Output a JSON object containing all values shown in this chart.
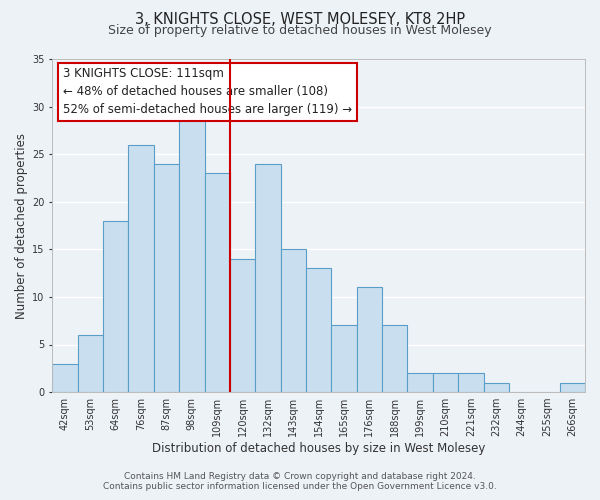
{
  "title": "3, KNIGHTS CLOSE, WEST MOLESEY, KT8 2HP",
  "subtitle": "Size of property relative to detached houses in West Molesey",
  "xlabel": "Distribution of detached houses by size in West Molesey",
  "ylabel": "Number of detached properties",
  "bar_labels": [
    "42sqm",
    "53sqm",
    "64sqm",
    "76sqm",
    "87sqm",
    "98sqm",
    "109sqm",
    "120sqm",
    "132sqm",
    "143sqm",
    "154sqm",
    "165sqm",
    "176sqm",
    "188sqm",
    "199sqm",
    "210sqm",
    "221sqm",
    "232sqm",
    "244sqm",
    "255sqm",
    "266sqm"
  ],
  "bar_values": [
    3,
    6,
    18,
    26,
    24,
    29,
    23,
    14,
    24,
    15,
    13,
    7,
    11,
    7,
    2,
    2,
    2,
    1,
    0,
    0,
    1
  ],
  "bar_color": "#c9dff0",
  "bar_edge_color": "#5a9ec8",
  "vline_x_index": 6,
  "vline_color": "#cc0000",
  "annotation_title": "3 KNIGHTS CLOSE: 111sqm",
  "annotation_line1": "← 48% of detached houses are smaller (108)",
  "annotation_line2": "52% of semi-detached houses are larger (119) →",
  "annotation_box_facecolor": "#ffffff",
  "annotation_box_edgecolor": "#cc0000",
  "ylim": [
    0,
    35
  ],
  "yticks": [
    0,
    5,
    10,
    15,
    20,
    25,
    30,
    35
  ],
  "footer1": "Contains HM Land Registry data © Crown copyright and database right 2024.",
  "footer2": "Contains public sector information licensed under the Open Government Licence v3.0.",
  "bg_color": "#edf2f7",
  "grid_color": "#ffffff",
  "title_fontsize": 10.5,
  "subtitle_fontsize": 9,
  "axis_label_fontsize": 8.5,
  "tick_fontsize": 7,
  "annotation_title_fontsize": 9,
  "annotation_body_fontsize": 8.5,
  "footer_fontsize": 6.5
}
